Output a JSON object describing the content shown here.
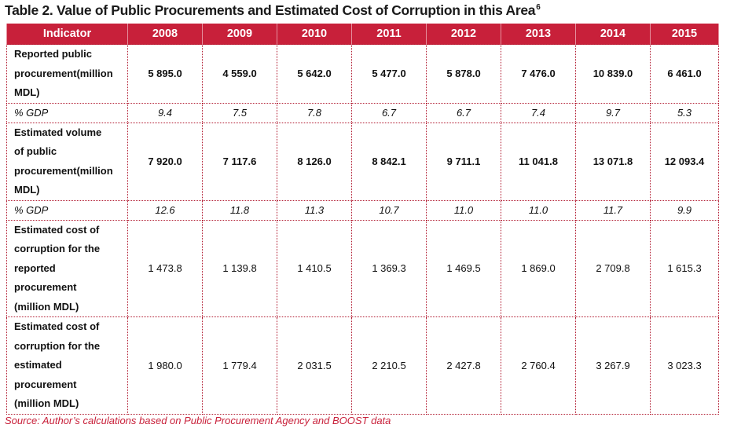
{
  "title": "Table 2. Value of Public Procurements and Estimated Cost of Corruption in this Area",
  "title_footnote": "6",
  "header": [
    "Indicator",
    "2008",
    "2009",
    "2010",
    "2011",
    "2012",
    "2013",
    "2014",
    "2015"
  ],
  "rows": [
    {
      "label": [
        "Reported public",
        "procurement(million",
        "MDL)"
      ],
      "values": [
        "5 895.0",
        "4 559.0",
        "5 642.0",
        "5 477.0",
        "5 878.0",
        "7 476.0",
        "10 839.0",
        "6 461.0"
      ]
    },
    {
      "label": [
        "% GDP"
      ],
      "values": [
        "9.4",
        "7.5",
        "7.8",
        "6.7",
        "6.7",
        "7.4",
        "9.7",
        "5.3"
      ]
    },
    {
      "label": [
        "Estimated volume",
        "of public",
        "procurement(million",
        "MDL)"
      ],
      "values": [
        "7 920.0",
        "7 117.6",
        "8 126.0",
        "8 842.1",
        "9 711.1",
        "11 041.8",
        "13 071.8",
        "12 093.4"
      ]
    },
    {
      "label": [
        "% GDP"
      ],
      "values": [
        "12.6",
        "11.8",
        "11.3",
        "10.7",
        "11.0",
        "11.0",
        "11.7",
        "9.9"
      ]
    },
    {
      "label": [
        "Estimated cost of",
        "corruption for the",
        "reported",
        "procurement",
        "(million MDL)"
      ],
      "values": [
        "1 473.8",
        "1 139.8",
        "1 410.5",
        "1 369.3",
        "1 469.5",
        "1 869.0",
        "2 709.8",
        "1 615.3"
      ]
    },
    {
      "label": [
        "Estimated cost of",
        "corruption for the",
        "estimated",
        "procurement",
        "(million MDL)"
      ],
      "values": [
        "1 980.0",
        "1 779.4",
        "2 031.5",
        "2 210.5",
        "2 427.8",
        "2 760.4",
        "3 267.9",
        "3 023.3"
      ]
    }
  ],
  "source": "Source:  Author’s calculations based on Public Procurement Agency and BOOST data",
  "colors": {
    "accent": "#c8203a"
  }
}
